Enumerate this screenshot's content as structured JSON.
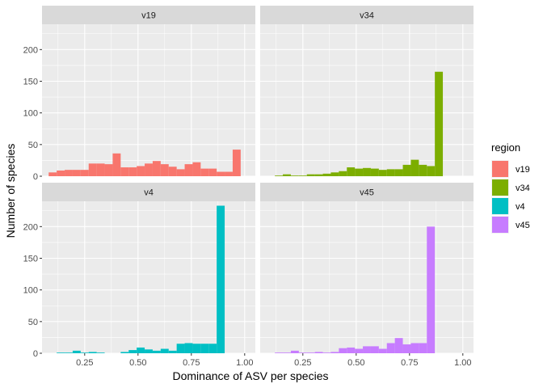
{
  "chart_data": {
    "type": "histogram",
    "xlabel": "Dominance of ASV per species",
    "ylabel": "Number of species",
    "legend_title": "region",
    "legend_position": "right",
    "grid": true,
    "facet_layout": "2x2",
    "xlim": [
      0.05,
      1.05
    ],
    "ylim": [
      0,
      240
    ],
    "x_ticks": [
      0.25,
      0.5,
      0.75,
      1.0
    ],
    "x_tick_labels": [
      "0.25",
      "0.50",
      "0.75",
      "1.00"
    ],
    "y_ticks": [
      0,
      50,
      100,
      150,
      200
    ],
    "y_tick_labels": [
      "0",
      "50",
      "100",
      "150",
      "200"
    ],
    "bin_width": 0.0375,
    "bin_centers": [
      0.1,
      0.1375,
      0.175,
      0.2125,
      0.25,
      0.2875,
      0.325,
      0.3625,
      0.4,
      0.4375,
      0.475,
      0.5125,
      0.55,
      0.5875,
      0.625,
      0.6625,
      0.7,
      0.7375,
      0.775,
      0.8125,
      0.85,
      0.8875,
      0.925,
      0.9625,
      1.0
    ],
    "series": [
      {
        "name": "v19",
        "color": "#F8766D",
        "values": [
          6,
          9,
          10,
          10,
          10,
          20,
          20,
          19,
          36,
          14,
          14,
          16,
          20,
          24,
          19,
          15,
          11,
          19,
          22,
          12,
          12,
          7,
          7,
          42,
          0
        ]
      },
      {
        "name": "v34",
        "color": "#7CAE00",
        "values": [
          0,
          1,
          3,
          1,
          1,
          3,
          3,
          4,
          6,
          8,
          14,
          12,
          13,
          12,
          10,
          11,
          11,
          18,
          26,
          18,
          16,
          165,
          0,
          0,
          0
        ]
      },
      {
        "name": "v4",
        "color": "#00BFC4",
        "values": [
          0,
          1,
          1,
          4,
          1,
          2,
          1,
          0,
          0,
          2,
          5,
          9,
          6,
          4,
          7,
          4,
          15,
          16,
          15,
          15,
          15,
          233,
          0,
          0,
          0
        ]
      },
      {
        "name": "v45",
        "color": "#C77CFF",
        "values": [
          0,
          1,
          1,
          4,
          1,
          1,
          2,
          1,
          2,
          8,
          9,
          7,
          11,
          11,
          7,
          16,
          24,
          14,
          16,
          16,
          200,
          0,
          0,
          0,
          0
        ]
      }
    ]
  }
}
